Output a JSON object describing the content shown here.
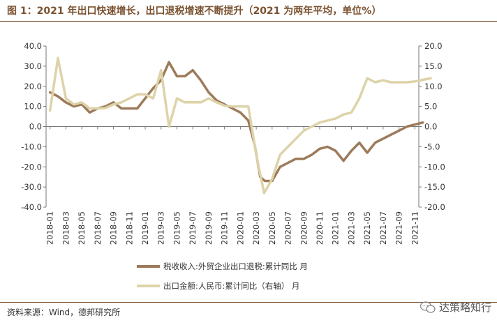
{
  "header": {
    "title": "图 1：2021 年出口快速增长，出口退税增速不断提升（2021 为两年平均，单位%）"
  },
  "footer": {
    "source": "资料来源：Wind，德邦研究所",
    "watermark": "达策略知行"
  },
  "colors": {
    "tax_line": "#9c7a5a",
    "export_line": "#ddd3a8",
    "axis": "#777777",
    "brand": "#7a5230"
  },
  "chart_data": {
    "type": "line",
    "title": "",
    "y_left": {
      "ylim": [
        -40,
        40
      ],
      "ticks": [
        "40.0",
        "30.0",
        "20.0",
        "10.0",
        "0.0",
        "-10.0",
        "-20.0",
        "-30.0",
        "-40.0"
      ]
    },
    "y_right": {
      "ylim": [
        -20,
        20
      ],
      "ticks": [
        "20.0",
        "15.0",
        "10.0",
        "5.0",
        "0.0",
        "-5.0",
        "-10.0",
        "-15.0",
        "-20.0"
      ]
    },
    "x_ticks": [
      "2018-01",
      "2018-03",
      "2018-05",
      "2018-07",
      "2018-09",
      "2018-11",
      "2019-01",
      "2019-03",
      "2019-05",
      "2019-07",
      "2019-09",
      "2019-11",
      "2020-01",
      "2020-03",
      "2020-05",
      "2020-07",
      "2020-09",
      "2020-11",
      "2021-01",
      "2021-03",
      "2021-05",
      "2021-07",
      "2021-09",
      "2021-11"
    ],
    "series": [
      {
        "name": "税收收入:外贸企业出口退税:累计同比 月",
        "axis": "left",
        "points": [
          [
            0,
            17
          ],
          [
            1,
            15
          ],
          [
            2,
            12
          ],
          [
            3,
            10
          ],
          [
            4,
            11
          ],
          [
            5,
            7
          ],
          [
            6,
            9
          ],
          [
            7,
            10
          ],
          [
            8,
            12
          ],
          [
            9,
            9
          ],
          [
            10,
            9
          ],
          [
            11,
            9
          ],
          [
            12,
            14
          ],
          [
            13,
            19
          ],
          [
            14,
            23
          ],
          [
            15,
            32
          ],
          [
            16,
            25
          ],
          [
            17,
            25
          ],
          [
            18,
            28
          ],
          [
            19,
            23
          ],
          [
            20,
            17
          ],
          [
            21,
            13
          ],
          [
            22,
            11
          ],
          [
            23,
            9
          ],
          [
            24,
            7
          ],
          [
            25,
            3
          ],
          [
            25.8,
            -9
          ],
          [
            26.5,
            -25
          ],
          [
            27.1,
            -27
          ],
          [
            28,
            -27
          ],
          [
            29,
            -20
          ],
          [
            30,
            -18
          ],
          [
            31,
            -16
          ],
          [
            32,
            -16
          ],
          [
            33,
            -14
          ],
          [
            34,
            -11
          ],
          [
            35,
            -10
          ],
          [
            36,
            -12
          ],
          [
            37,
            -17
          ],
          [
            38,
            -12
          ],
          [
            39,
            -8
          ],
          [
            40,
            -13
          ],
          [
            41,
            -8
          ],
          [
            42,
            -6
          ],
          [
            43,
            -4
          ],
          [
            44,
            -2
          ],
          [
            45,
            0
          ],
          [
            46,
            1
          ],
          [
            47,
            2
          ]
        ]
      },
      {
        "name": "出口金额:人民币:累计同比（右轴） 月",
        "axis": "right",
        "points": [
          [
            0,
            4
          ],
          [
            1,
            17
          ],
          [
            2,
            7
          ],
          [
            3,
            5.5
          ],
          [
            4,
            6
          ],
          [
            5,
            4.5
          ],
          [
            6,
            4.5
          ],
          [
            7,
            4.6
          ],
          [
            8,
            5.5
          ],
          [
            9,
            6
          ],
          [
            10,
            7
          ],
          [
            11,
            8
          ],
          [
            12,
            8
          ],
          [
            13,
            7
          ],
          [
            14,
            14
          ],
          [
            15,
            0
          ],
          [
            16,
            7
          ],
          [
            17,
            6
          ],
          [
            18,
            6
          ],
          [
            19,
            6
          ],
          [
            20,
            7
          ],
          [
            21,
            6
          ],
          [
            22,
            5.2
          ],
          [
            23,
            5
          ],
          [
            24,
            5
          ],
          [
            25,
            5
          ],
          [
            26,
            -7
          ],
          [
            27,
            -16.5
          ],
          [
            28,
            -13
          ],
          [
            29,
            -7
          ],
          [
            30,
            -5
          ],
          [
            31,
            -3
          ],
          [
            32,
            -1
          ],
          [
            33,
            0
          ],
          [
            34,
            1
          ],
          [
            35,
            1.5
          ],
          [
            36,
            2
          ],
          [
            37,
            3
          ],
          [
            38,
            3.5
          ],
          [
            39,
            7
          ],
          [
            40,
            12
          ],
          [
            41,
            11
          ],
          [
            42,
            11.5
          ],
          [
            43,
            11
          ],
          [
            44,
            11
          ],
          [
            45,
            11
          ],
          [
            46,
            11.2
          ],
          [
            47,
            11.6
          ],
          [
            48,
            12
          ]
        ]
      }
    ]
  }
}
